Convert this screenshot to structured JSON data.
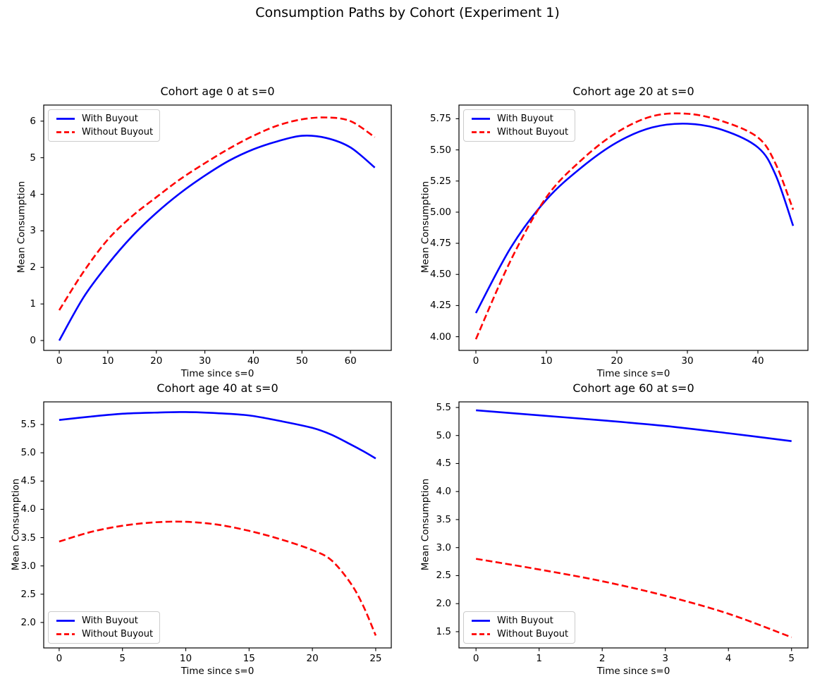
{
  "figure": {
    "title": "Consumption Paths by Cohort (Experiment 1)",
    "background": "#ffffff"
  },
  "chart_data": [
    {
      "type": "line",
      "title": "Cohort age 0 at s=0",
      "xlabel": "Time since s=0",
      "ylabel": "Mean Consumption",
      "x": [
        0,
        5,
        10,
        15,
        20,
        25,
        30,
        35,
        40,
        45,
        50,
        55,
        60,
        65
      ],
      "series": [
        {
          "name": "With Buyout",
          "color": "#0000ff",
          "dash": false,
          "y": [
            0.0,
            1.18,
            2.08,
            2.85,
            3.49,
            4.04,
            4.51,
            4.92,
            5.23,
            5.45,
            5.6,
            5.54,
            5.28,
            4.73
          ]
        },
        {
          "name": "Without Buyout",
          "color": "#ff0000",
          "dash": true,
          "y": [
            0.83,
            1.88,
            2.76,
            3.4,
            3.92,
            4.42,
            4.85,
            5.25,
            5.6,
            5.88,
            6.05,
            6.1,
            6.0,
            5.56
          ]
        }
      ],
      "xticks": [
        0,
        10,
        20,
        30,
        40,
        50,
        60
      ],
      "xtick_labels": [
        "0",
        "10",
        "20",
        "30",
        "40",
        "50",
        "60"
      ],
      "yticks": [
        0,
        1,
        2,
        3,
        4,
        5,
        6
      ],
      "ytick_labels": [
        "0",
        "1",
        "2",
        "3",
        "4",
        "5",
        "6"
      ],
      "xlim": [
        -3.2,
        68.4
      ],
      "ylim": [
        -0.27,
        6.44
      ],
      "legend_position": "upper-left",
      "grid": false
    },
    {
      "type": "line",
      "title": "Cohort age 20 at s=0",
      "xlabel": "Time since s=0",
      "ylabel": "Mean Consumption",
      "x": [
        0,
        5,
        10,
        15,
        20,
        25,
        30,
        35,
        40,
        42.5,
        45
      ],
      "series": [
        {
          "name": "With Buyout",
          "color": "#0000ff",
          "dash": false,
          "y": [
            4.19,
            4.72,
            5.1,
            5.36,
            5.56,
            5.68,
            5.71,
            5.66,
            5.52,
            5.3,
            4.89
          ]
        },
        {
          "name": "Without Buyout",
          "color": "#ff0000",
          "dash": true,
          "y": [
            3.98,
            4.62,
            5.12,
            5.42,
            5.64,
            5.77,
            5.79,
            5.73,
            5.6,
            5.39,
            5.02
          ]
        }
      ],
      "xticks": [
        0,
        10,
        20,
        30,
        40
      ],
      "xtick_labels": [
        "0",
        "10",
        "20",
        "30",
        "40"
      ],
      "yticks": [
        4.0,
        4.25,
        4.5,
        4.75,
        5.0,
        5.25,
        5.5,
        5.75
      ],
      "ytick_labels": [
        "4.00",
        "4.25",
        "4.50",
        "4.75",
        "5.00",
        "5.25",
        "5.50",
        "5.75"
      ],
      "xlim": [
        -2.4,
        47.1
      ],
      "ylim": [
        3.89,
        5.86
      ],
      "legend_position": "upper-left",
      "grid": false
    },
    {
      "type": "line",
      "title": "Cohort age 40 at s=0",
      "xlabel": "Time since s=0",
      "ylabel": "Mean Consumption",
      "x": [
        0,
        2.5,
        5,
        7.5,
        10,
        12.5,
        15,
        17.5,
        20,
        21.5,
        23,
        24,
        25
      ],
      "series": [
        {
          "name": "With Buyout",
          "color": "#0000ff",
          "dash": false,
          "y": [
            5.58,
            5.64,
            5.69,
            5.71,
            5.72,
            5.7,
            5.66,
            5.56,
            5.44,
            5.32,
            5.15,
            5.03,
            4.9
          ]
        },
        {
          "name": "Without Buyout",
          "color": "#ff0000",
          "dash": true,
          "y": [
            3.43,
            3.6,
            3.71,
            3.77,
            3.78,
            3.73,
            3.62,
            3.47,
            3.28,
            3.1,
            2.7,
            2.3,
            1.77
          ]
        }
      ],
      "xticks": [
        0,
        5,
        10,
        15,
        20,
        25
      ],
      "xtick_labels": [
        "0",
        "5",
        "10",
        "15",
        "20",
        "25"
      ],
      "yticks": [
        2.0,
        2.5,
        3.0,
        3.5,
        4.0,
        4.5,
        5.0,
        5.5
      ],
      "ytick_labels": [
        "2.0",
        "2.5",
        "3.0",
        "3.5",
        "4.0",
        "4.5",
        "5.0",
        "5.5"
      ],
      "xlim": [
        -1.22,
        26.23
      ],
      "ylim": [
        1.55,
        5.9
      ],
      "legend_position": "lower-left",
      "grid": false
    },
    {
      "type": "line",
      "title": "Cohort age 60 at s=0",
      "xlabel": "Time since s=0",
      "ylabel": "Mean Consumption",
      "x": [
        0,
        1,
        2,
        3,
        4,
        5
      ],
      "series": [
        {
          "name": "With Buyout",
          "color": "#0000ff",
          "dash": false,
          "y": [
            5.45,
            5.36,
            5.27,
            5.17,
            5.04,
            4.9
          ]
        },
        {
          "name": "Without Buyout",
          "color": "#ff0000",
          "dash": true,
          "y": [
            2.8,
            2.61,
            2.4,
            2.14,
            1.82,
            1.4
          ]
        }
      ],
      "xticks": [
        0,
        1,
        2,
        3,
        4,
        5
      ],
      "xtick_labels": [
        "0",
        "1",
        "2",
        "3",
        "4",
        "5"
      ],
      "yticks": [
        1.5,
        2.0,
        2.5,
        3.0,
        3.5,
        4.0,
        4.5,
        5.0,
        5.5
      ],
      "ytick_labels": [
        "1.5",
        "2.0",
        "2.5",
        "3.0",
        "3.5",
        "4.0",
        "4.5",
        "5.0",
        "5.5"
      ],
      "xlim": [
        -0.27,
        5.26
      ],
      "ylim": [
        1.21,
        5.6
      ],
      "legend_position": "lower-left",
      "grid": false
    }
  ]
}
